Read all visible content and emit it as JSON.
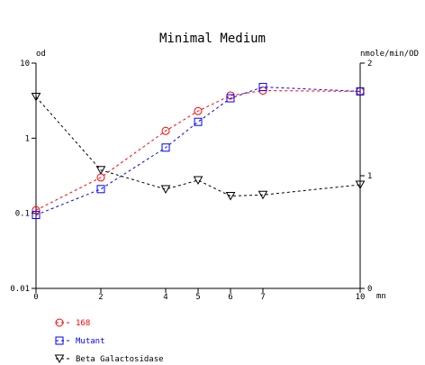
{
  "chart_data": {
    "type": "line",
    "title": "Minimal Medium",
    "x_unit": "mn",
    "y_left_label": "od",
    "y_right_label": "nmole/min/OD",
    "y_left_scale": "log",
    "y_left_range": [
      0.01,
      10
    ],
    "y_left_ticks": [
      "10",
      "1",
      "0.1",
      "0.01"
    ],
    "y_right_range": [
      0,
      2
    ],
    "y_right_ticks": [
      "2",
      "1",
      "0"
    ],
    "x_range": [
      0,
      10
    ],
    "x_ticks": [
      "0",
      "2",
      "4",
      "5",
      "6",
      "7",
      "10"
    ],
    "x": [
      0,
      2,
      4,
      5,
      6,
      7,
      10
    ],
    "grid": false,
    "legend_position": "bottom-left",
    "series": [
      {
        "name": "168",
        "axis": "left",
        "marker": "circle",
        "color": "#ff0000",
        "values": [
          0.11,
          0.3,
          1.25,
          2.3,
          3.7,
          4.3,
          4.2
        ]
      },
      {
        "name": "Mutant",
        "axis": "left",
        "marker": "square",
        "color": "#0000ff",
        "values": [
          0.095,
          0.21,
          0.75,
          1.65,
          3.4,
          4.8,
          4.2
        ]
      },
      {
        "name": "Beta Galactosidase",
        "axis": "right",
        "marker": "triangle-down",
        "color": "#000000",
        "values": [
          1.7,
          1.05,
          0.88,
          0.96,
          0.82,
          0.83,
          0.92
        ]
      }
    ]
  }
}
